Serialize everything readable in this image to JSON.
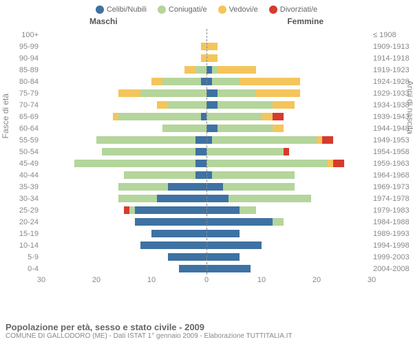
{
  "legend": [
    {
      "label": "Celibi/Nubili",
      "color": "#3e72a3"
    },
    {
      "label": "Coniugati/e",
      "color": "#b4d59b"
    },
    {
      "label": "Vedovi/e",
      "color": "#f4c55c"
    },
    {
      "label": "Divorziati/e",
      "color": "#d73a2e"
    }
  ],
  "sides": {
    "left": "Maschi",
    "right": "Femmine"
  },
  "y_left_label": "Fasce di età",
  "y_right_label": "Anni di nascita",
  "x_ticks": [
    30,
    20,
    10,
    0,
    10,
    20,
    30
  ],
  "x_max": 30,
  "colors": {
    "single": "#3e72a3",
    "married": "#b4d59b",
    "widowed": "#f4c55c",
    "divorced": "#d73a2e",
    "grid": "#888888",
    "text": "#666666",
    "background": "#ffffff"
  },
  "rows": [
    {
      "age": "100+",
      "birth": "≤ 1908",
      "m": {
        "s": 0,
        "m": 0,
        "w": 0,
        "d": 0
      },
      "f": {
        "s": 0,
        "m": 0,
        "w": 0,
        "d": 0
      }
    },
    {
      "age": "95-99",
      "birth": "1909-1913",
      "m": {
        "s": 0,
        "m": 0,
        "w": 1,
        "d": 0
      },
      "f": {
        "s": 0,
        "m": 0,
        "w": 2,
        "d": 0
      }
    },
    {
      "age": "90-94",
      "birth": "1914-1918",
      "m": {
        "s": 0,
        "m": 0,
        "w": 1,
        "d": 0
      },
      "f": {
        "s": 0,
        "m": 0,
        "w": 2,
        "d": 0
      }
    },
    {
      "age": "85-89",
      "birth": "1919-1923",
      "m": {
        "s": 0,
        "m": 2,
        "w": 2,
        "d": 0
      },
      "f": {
        "s": 1,
        "m": 1,
        "w": 7,
        "d": 0
      }
    },
    {
      "age": "80-84",
      "birth": "1924-1928",
      "m": {
        "s": 1,
        "m": 7,
        "w": 2,
        "d": 0
      },
      "f": {
        "s": 1,
        "m": 5,
        "w": 11,
        "d": 0
      }
    },
    {
      "age": "75-79",
      "birth": "1929-1933",
      "m": {
        "s": 0,
        "m": 12,
        "w": 4,
        "d": 0
      },
      "f": {
        "s": 2,
        "m": 7,
        "w": 8,
        "d": 0
      }
    },
    {
      "age": "70-74",
      "birth": "1934-1938",
      "m": {
        "s": 0,
        "m": 7,
        "w": 2,
        "d": 0
      },
      "f": {
        "s": 2,
        "m": 10,
        "w": 4,
        "d": 0
      }
    },
    {
      "age": "65-69",
      "birth": "1939-1943",
      "m": {
        "s": 1,
        "m": 15,
        "w": 1,
        "d": 0
      },
      "f": {
        "s": 0,
        "m": 10,
        "w": 2,
        "d": 2
      }
    },
    {
      "age": "60-64",
      "birth": "1944-1948",
      "m": {
        "s": 0,
        "m": 8,
        "w": 0,
        "d": 0
      },
      "f": {
        "s": 2,
        "m": 10,
        "w": 2,
        "d": 0
      }
    },
    {
      "age": "55-59",
      "birth": "1949-1953",
      "m": {
        "s": 2,
        "m": 18,
        "w": 0,
        "d": 0
      },
      "f": {
        "s": 1,
        "m": 19,
        "w": 1,
        "d": 2
      }
    },
    {
      "age": "50-54",
      "birth": "1954-1958",
      "m": {
        "s": 2,
        "m": 17,
        "w": 0,
        "d": 0
      },
      "f": {
        "s": 0,
        "m": 14,
        "w": 0,
        "d": 1
      }
    },
    {
      "age": "45-49",
      "birth": "1959-1963",
      "m": {
        "s": 2,
        "m": 22,
        "w": 0,
        "d": 0
      },
      "f": {
        "s": 0,
        "m": 22,
        "w": 1,
        "d": 2
      }
    },
    {
      "age": "40-44",
      "birth": "1964-1968",
      "m": {
        "s": 2,
        "m": 13,
        "w": 0,
        "d": 0
      },
      "f": {
        "s": 1,
        "m": 15,
        "w": 0,
        "d": 0
      }
    },
    {
      "age": "35-39",
      "birth": "1969-1973",
      "m": {
        "s": 7,
        "m": 9,
        "w": 0,
        "d": 0
      },
      "f": {
        "s": 3,
        "m": 13,
        "w": 0,
        "d": 0
      }
    },
    {
      "age": "30-34",
      "birth": "1974-1978",
      "m": {
        "s": 9,
        "m": 7,
        "w": 0,
        "d": 0
      },
      "f": {
        "s": 4,
        "m": 15,
        "w": 0,
        "d": 0
      }
    },
    {
      "age": "25-29",
      "birth": "1979-1983",
      "m": {
        "s": 13,
        "m": 1,
        "w": 0,
        "d": 1
      },
      "f": {
        "s": 6,
        "m": 3,
        "w": 0,
        "d": 0
      }
    },
    {
      "age": "20-24",
      "birth": "1984-1988",
      "m": {
        "s": 13,
        "m": 0,
        "w": 0,
        "d": 0
      },
      "f": {
        "s": 12,
        "m": 2,
        "w": 0,
        "d": 0
      }
    },
    {
      "age": "15-19",
      "birth": "1989-1993",
      "m": {
        "s": 10,
        "m": 0,
        "w": 0,
        "d": 0
      },
      "f": {
        "s": 6,
        "m": 0,
        "w": 0,
        "d": 0
      }
    },
    {
      "age": "10-14",
      "birth": "1994-1998",
      "m": {
        "s": 12,
        "m": 0,
        "w": 0,
        "d": 0
      },
      "f": {
        "s": 10,
        "m": 0,
        "w": 0,
        "d": 0
      }
    },
    {
      "age": "5-9",
      "birth": "1999-2003",
      "m": {
        "s": 7,
        "m": 0,
        "w": 0,
        "d": 0
      },
      "f": {
        "s": 6,
        "m": 0,
        "w": 0,
        "d": 0
      }
    },
    {
      "age": "0-4",
      "birth": "2004-2008",
      "m": {
        "s": 5,
        "m": 0,
        "w": 0,
        "d": 0
      },
      "f": {
        "s": 8,
        "m": 0,
        "w": 0,
        "d": 0
      }
    }
  ],
  "footer": {
    "title": "Popolazione per età, sesso e stato civile - 2009",
    "subtitle": "COMUNE DI GALLODORO (ME) - Dati ISTAT 1° gennaio 2009 - Elaborazione TUTTITALIA.IT"
  }
}
